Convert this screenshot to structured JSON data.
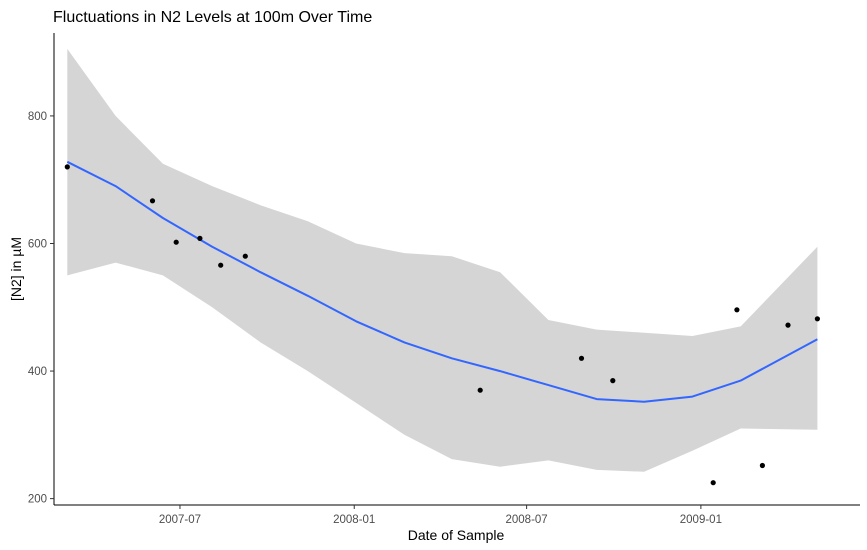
{
  "chart_data": {
    "type": "scatter",
    "title": "Fluctuations in N2 Levels at 100m Over Time",
    "xlabel": "Date of Sample",
    "ylabel": "[N2] in µM",
    "x_ticks": [
      {
        "date": "2007-07-01",
        "label": "2007-07"
      },
      {
        "date": "2008-01-01",
        "label": "2008-01"
      },
      {
        "date": "2008-07-01",
        "label": "2008-07"
      },
      {
        "date": "2009-01-01",
        "label": "2009-01"
      }
    ],
    "y_ticks": [
      200,
      400,
      600,
      800
    ],
    "xlim": [
      "2007-02-18",
      "2009-06-18"
    ],
    "ylim": [
      190,
      930
    ],
    "grid": false,
    "points": [
      {
        "x": "2007-03-04",
        "y": 720
      },
      {
        "x": "2007-06-02",
        "y": 667
      },
      {
        "x": "2007-06-27",
        "y": 602
      },
      {
        "x": "2007-07-22",
        "y": 608
      },
      {
        "x": "2007-08-13",
        "y": 566
      },
      {
        "x": "2007-09-08",
        "y": 580
      },
      {
        "x": "2008-05-13",
        "y": 370
      },
      {
        "x": "2008-08-28",
        "y": 420
      },
      {
        "x": "2008-09-30",
        "y": 385
      },
      {
        "x": "2009-01-14",
        "y": 225
      },
      {
        "x": "2009-02-08",
        "y": 496
      },
      {
        "x": "2009-03-07",
        "y": 252
      },
      {
        "x": "2009-04-03",
        "y": 472
      },
      {
        "x": "2009-05-04",
        "y": 482
      }
    ],
    "smooth": {
      "method": "loess",
      "color": "#3366ff",
      "band_color": "#d5d5d5",
      "x": [
        "2007-03-04",
        "2007-04-24",
        "2007-06-13",
        "2007-08-04",
        "2007-09-24",
        "2007-11-13",
        "2008-01-03",
        "2008-02-23",
        "2008-04-13",
        "2008-06-03",
        "2008-07-24",
        "2008-09-13",
        "2008-11-02",
        "2008-12-23",
        "2009-02-12",
        "2009-05-04"
      ],
      "fit": [
        728,
        690,
        640,
        595,
        555,
        518,
        478,
        445,
        420,
        400,
        378,
        356,
        352,
        360,
        385,
        450
      ],
      "lower": [
        550,
        570,
        550,
        500,
        445,
        400,
        350,
        300,
        262,
        250,
        260,
        245,
        242,
        275,
        310,
        308
      ],
      "upper": [
        905,
        800,
        725,
        690,
        660,
        635,
        600,
        585,
        580,
        555,
        480,
        465,
        460,
        455,
        470,
        595
      ]
    }
  }
}
